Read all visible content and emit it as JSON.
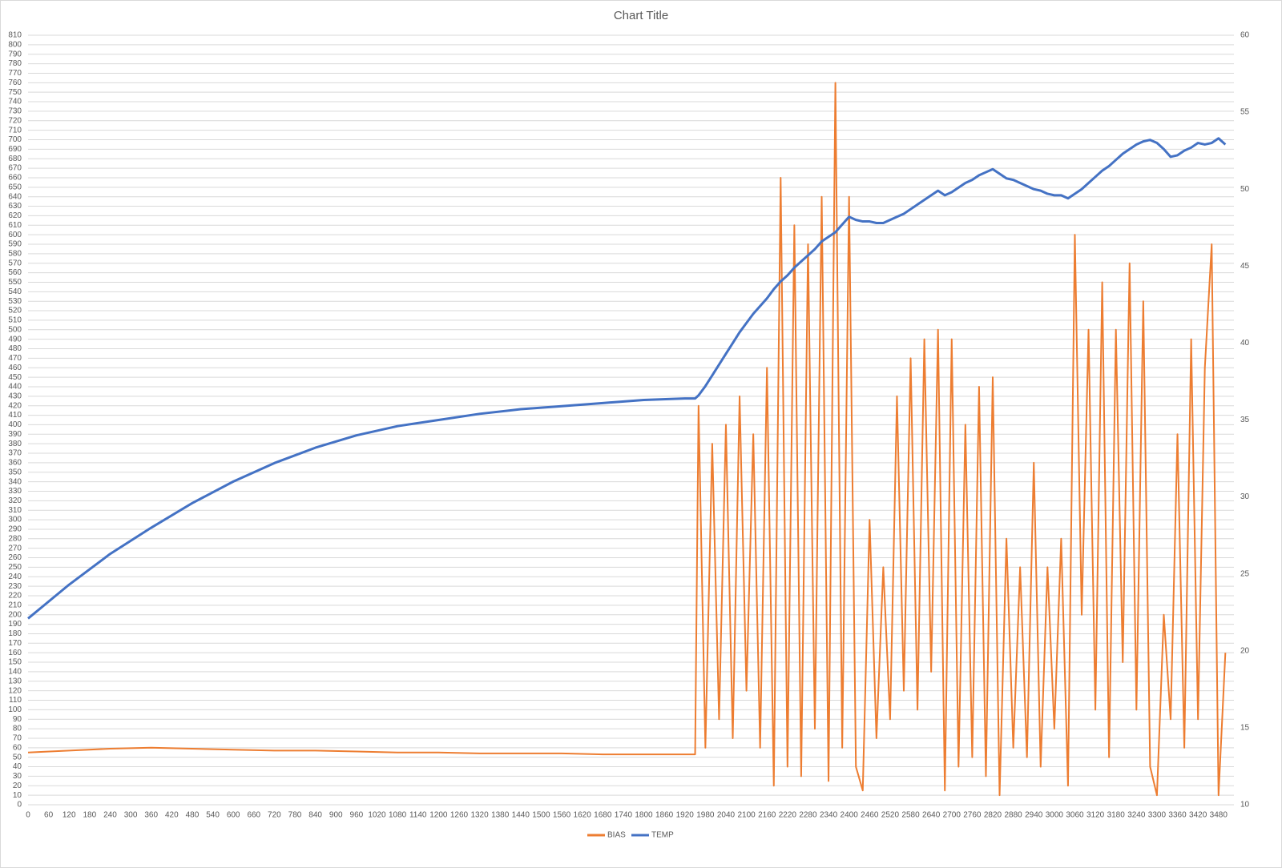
{
  "chart_data": {
    "type": "line",
    "title": "Chart Title",
    "x": [
      0,
      120,
      240,
      360,
      480,
      600,
      720,
      840,
      960,
      1080,
      1200,
      1320,
      1440,
      1560,
      1680,
      1800,
      1920,
      1950,
      1960,
      1980,
      2000,
      2020,
      2040,
      2060,
      2080,
      2100,
      2120,
      2140,
      2160,
      2180,
      2200,
      2220,
      2240,
      2260,
      2280,
      2300,
      2320,
      2340,
      2360,
      2380,
      2400,
      2420,
      2440,
      2460,
      2480,
      2500,
      2520,
      2540,
      2560,
      2580,
      2600,
      2620,
      2640,
      2660,
      2680,
      2700,
      2720,
      2740,
      2760,
      2780,
      2800,
      2820,
      2840,
      2860,
      2880,
      2900,
      2920,
      2940,
      2960,
      2980,
      3000,
      3020,
      3040,
      3060,
      3080,
      3100,
      3120,
      3140,
      3160,
      3180,
      3200,
      3220,
      3240,
      3260,
      3280,
      3300,
      3320,
      3340,
      3360,
      3380,
      3400,
      3420,
      3440,
      3460,
      3480,
      3500
    ],
    "series": [
      {
        "name": "BIAS",
        "color": "#ed7d31",
        "values": [
          55,
          57,
          59,
          60,
          59,
          58,
          57,
          57,
          56,
          55,
          55,
          54,
          54,
          54,
          53,
          53,
          53,
          53,
          420,
          60,
          380,
          90,
          400,
          70,
          430,
          120,
          390,
          60,
          460,
          20,
          660,
          40,
          610,
          30,
          590,
          80,
          640,
          25,
          760,
          60,
          640,
          40,
          15,
          300,
          70,
          250,
          90,
          430,
          120,
          470,
          100,
          490,
          140,
          500,
          15,
          490,
          40,
          400,
          50,
          440,
          30,
          450,
          10,
          280,
          60,
          250,
          50,
          360,
          40,
          250,
          80,
          280,
          20,
          600,
          200,
          500,
          100,
          550,
          50,
          500,
          150,
          570,
          100,
          530,
          40,
          10,
          200,
          90,
          390,
          60,
          490,
          90,
          460,
          590,
          10,
          160
        ]
      },
      {
        "name": "TEMP",
        "color": "#4472c4",
        "axis": "y2",
        "values": [
          22.1,
          24.3,
          26.3,
          28.0,
          29.6,
          31.0,
          32.2,
          33.2,
          34.0,
          34.6,
          35.0,
          35.4,
          35.7,
          35.9,
          36.1,
          36.3,
          36.4,
          36.4,
          36.6,
          37.2,
          37.9,
          38.6,
          39.3,
          40.0,
          40.7,
          41.3,
          41.9,
          42.4,
          42.9,
          43.5,
          44.0,
          44.4,
          44.9,
          45.3,
          45.7,
          46.1,
          46.6,
          46.9,
          47.2,
          47.7,
          48.2,
          48.0,
          47.9,
          47.9,
          47.8,
          47.8,
          48.0,
          48.2,
          48.4,
          48.7,
          49.0,
          49.3,
          49.6,
          49.9,
          49.6,
          49.8,
          50.1,
          50.4,
          50.6,
          50.9,
          51.1,
          51.3,
          51.0,
          50.7,
          50.6,
          50.4,
          50.2,
          50.0,
          49.9,
          49.7,
          49.6,
          49.6,
          49.4,
          49.7,
          50.0,
          50.4,
          50.8,
          51.2,
          51.5,
          51.9,
          52.3,
          52.6,
          52.9,
          53.1,
          53.2,
          53.0,
          52.6,
          52.1,
          52.2,
          52.5,
          52.7,
          53.0,
          52.9,
          53.0,
          53.3,
          52.9
        ]
      }
    ],
    "xlim": [
      0,
      3525
    ],
    "xticks": [
      0,
      60,
      120,
      180,
      240,
      300,
      360,
      420,
      480,
      540,
      600,
      660,
      720,
      780,
      840,
      900,
      960,
      1020,
      1080,
      1140,
      1200,
      1260,
      1320,
      1380,
      1440,
      1500,
      1560,
      1620,
      1680,
      1740,
      1800,
      1860,
      1920,
      1980,
      2040,
      2100,
      2160,
      2220,
      2280,
      2340,
      2400,
      2460,
      2520,
      2580,
      2640,
      2700,
      2760,
      2820,
      2880,
      2940,
      3000,
      3060,
      3120,
      3180,
      3240,
      3300,
      3360,
      3420,
      3480
    ],
    "ylim": [
      0,
      810
    ],
    "yticks": [
      0,
      10,
      20,
      30,
      40,
      50,
      60,
      70,
      80,
      90,
      100,
      110,
      120,
      130,
      140,
      150,
      160,
      170,
      180,
      190,
      200,
      210,
      220,
      230,
      240,
      250,
      260,
      270,
      280,
      290,
      300,
      310,
      320,
      330,
      340,
      350,
      360,
      370,
      380,
      390,
      400,
      410,
      420,
      430,
      440,
      450,
      460,
      470,
      480,
      490,
      500,
      510,
      520,
      530,
      540,
      550,
      560,
      570,
      580,
      590,
      600,
      610,
      620,
      630,
      640,
      650,
      660,
      670,
      680,
      690,
      700,
      710,
      720,
      730,
      740,
      750,
      760,
      770,
      780,
      790,
      800,
      810
    ],
    "y2lim": [
      10,
      60
    ],
    "y2ticks": [
      10,
      15,
      20,
      25,
      30,
      35,
      40,
      45,
      50,
      55,
      60
    ],
    "grid": true,
    "legend": "bottom"
  }
}
